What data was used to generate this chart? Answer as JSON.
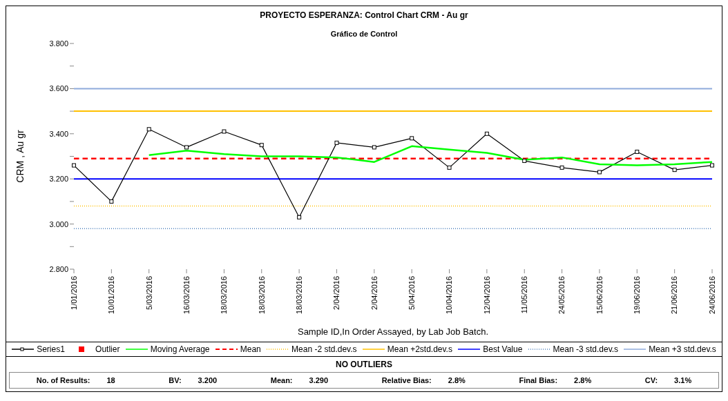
{
  "chart_data": {
    "type": "line",
    "title": "PROYECTO ESPERANZA: Control Chart CRM - Au gr",
    "subtitle": "Gráfico de Control",
    "xlabel": "Sample ID,In Order Assayed, by Lab Job Batch.",
    "ylabel": "CRM , Au gr",
    "categories": [
      "1/01/2016",
      "10/01/2016",
      "5/03/2016",
      "16/03/2016",
      "18/03/2016",
      "18/03/2016",
      "18/03/2016",
      "2/04/2016",
      "2/04/2016",
      "5/04/2016",
      "10/04/2016",
      "12/04/2016",
      "11/05/2016",
      "24/05/2016",
      "15/06/2016",
      "19/06/2016",
      "21/06/2016",
      "24/06/2016"
    ],
    "series": [
      {
        "name": "Series1",
        "color": "#000000",
        "marker": "square",
        "values": [
          3.26,
          3.1,
          3.42,
          3.34,
          3.41,
          3.35,
          3.03,
          3.36,
          3.34,
          3.38,
          3.25,
          3.4,
          3.28,
          3.25,
          3.23,
          3.32,
          3.24,
          3.26
        ]
      },
      {
        "name": "Outlier",
        "type": "scatter",
        "color": "#ff0000",
        "marker": "square",
        "values": [
          null,
          null,
          null,
          null,
          null,
          null,
          null,
          null,
          null,
          null,
          null,
          null,
          null,
          null,
          null,
          null,
          null,
          null
        ]
      },
      {
        "name": "Moving Average",
        "color": "#00ff00",
        "marker": "none",
        "values": [
          null,
          null,
          3.305,
          3.325,
          3.31,
          3.3,
          3.3,
          3.295,
          3.275,
          3.345,
          3.33,
          3.315,
          3.285,
          3.295,
          3.265,
          3.26,
          3.265,
          3.275
        ]
      }
    ],
    "ref_lines": [
      {
        "axis": "y",
        "value": 3.29,
        "label": "Mean",
        "color": "#ff0000",
        "line_style": "dashed"
      },
      {
        "axis": "y",
        "value": 3.08,
        "label": "Mean -2 std.dev.s",
        "color": "#ffc000",
        "line_style": "dotted"
      },
      {
        "axis": "y",
        "value": 3.5,
        "label": "Mean +2std.dev.s",
        "color": "#ffc000",
        "line_style": "solid"
      },
      {
        "axis": "y",
        "value": 3.2,
        "label": "Best Value",
        "color": "#0000ff",
        "line_style": "solid"
      },
      {
        "axis": "y",
        "value": 2.98,
        "label": "Mean -3 std.dev.s",
        "color": "#4f81bd",
        "line_style": "dotted"
      },
      {
        "axis": "y",
        "value": 3.6,
        "label": "Mean +3 std.dev.s",
        "color": "#8eaadb",
        "line_style": "solid"
      }
    ],
    "ylim": [
      2.8,
      3.8
    ],
    "yticks": [
      {
        "value": 2.8,
        "label": "2.800"
      },
      {
        "value": 2.9,
        "label": null
      },
      {
        "value": 3.0,
        "label": "3.000"
      },
      {
        "value": 3.1,
        "label": null
      },
      {
        "value": 3.2,
        "label": "3.200"
      },
      {
        "value": 3.3,
        "label": null
      },
      {
        "value": 3.4,
        "label": "3.400"
      },
      {
        "value": 3.5,
        "label": null
      },
      {
        "value": 3.6,
        "label": "3.600"
      },
      {
        "value": 3.7,
        "label": null
      },
      {
        "value": 3.8,
        "label": "3.800"
      }
    ],
    "grid": false,
    "legend": "bottom",
    "annotations": [
      "NO OUTLIERS",
      "No. of Results:",
      "18",
      "BV:",
      "3.200",
      "Mean:",
      "3.290",
      "Relative Bias:",
      "2.8%",
      "Final Bias:",
      "2.8%",
      "CV:",
      "3.1%"
    ]
  }
}
